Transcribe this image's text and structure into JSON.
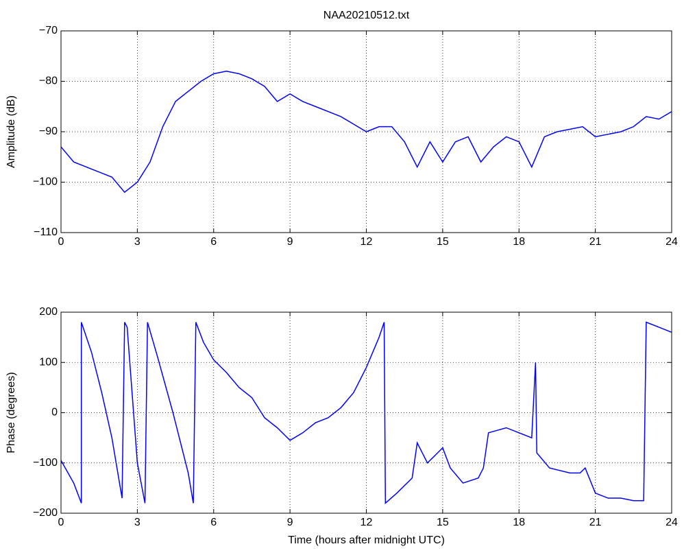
{
  "chart_data": [
    {
      "type": "line",
      "title": "NAA20210512.txt",
      "y_label": "Amplitude (dB)",
      "x": [
        0,
        0.5,
        1,
        1.5,
        2,
        2.5,
        3,
        3.5,
        4,
        4.5,
        5,
        5.5,
        6,
        6.5,
        7,
        7.5,
        8,
        8.5,
        9,
        9.5,
        10,
        10.5,
        11,
        11.5,
        12,
        12.5,
        13,
        13.5,
        14,
        14.5,
        15,
        15.5,
        16,
        16.5,
        17,
        17.5,
        18,
        18.5,
        19,
        19.5,
        20,
        20.5,
        21,
        21.5,
        22,
        22.5,
        23,
        23.5,
        24
      ],
      "series": [
        {
          "color": "#0000ff",
          "values": [
            -93,
            -96,
            -97,
            -98,
            -99,
            -102,
            -100,
            -96,
            -89,
            -84,
            -82,
            -80,
            -78.5,
            -78,
            -78.5,
            -79.5,
            -81,
            -84,
            -82.5,
            -84,
            -85,
            -86,
            -87,
            -88.5,
            -90,
            -89,
            -89,
            -92,
            -97,
            -92,
            -96,
            -92,
            -91,
            -96,
            -93,
            -91,
            -92,
            -97,
            -91,
            -90,
            -89.5,
            -89,
            -91,
            -90.5,
            -90,
            -89,
            -87,
            -87.5,
            -86
          ]
        }
      ],
      "xlim": [
        0,
        24
      ],
      "xticks": [
        0,
        3,
        6,
        9,
        12,
        15,
        18,
        21,
        24
      ],
      "ylim": [
        -110,
        -70
      ],
      "yticks": [
        {
          "value": -110,
          "label": "−110"
        },
        {
          "value": -100,
          "label": "−100"
        },
        {
          "value": -90,
          "label": "−90"
        },
        {
          "value": -80,
          "label": "−80"
        },
        {
          "value": -70,
          "label": "−70"
        }
      ],
      "grid": true
    },
    {
      "type": "line",
      "y_label": "Phase (degrees)",
      "x_label": "Time (hours after midnight UTC)",
      "x": [
        0,
        0.5,
        0.8,
        0.8,
        1.2,
        1.6,
        2.0,
        2.4,
        2.5,
        2.6,
        3.0,
        3.3,
        3.4,
        3.8,
        4.4,
        5.0,
        5.2,
        5.3,
        5.6,
        6.0,
        6.5,
        7.0,
        7.5,
        8.0,
        8.5,
        9.0,
        9.5,
        10.0,
        10.5,
        11.0,
        11.5,
        12.0,
        12.5,
        12.7,
        12.75,
        13.2,
        13.8,
        14.0,
        14.4,
        15.0,
        15.3,
        15.8,
        16.4,
        16.6,
        16.8,
        17.5,
        18.0,
        18.5,
        18.65,
        18.7,
        19.2,
        20.0,
        20.4,
        20.6,
        21.0,
        21.5,
        22.0,
        22.5,
        22.9,
        23.0,
        23.5,
        24.0
      ],
      "series": [
        {
          "color": "#0000ff",
          "values": [
            -95,
            -140,
            -180,
            180,
            120,
            40,
            -50,
            -170,
            180,
            170,
            -100,
            -180,
            180,
            110,
            0,
            -120,
            -180,
            180,
            140,
            105,
            80,
            50,
            30,
            -10,
            -30,
            -55,
            -40,
            -20,
            -10,
            10,
            40,
            90,
            150,
            180,
            -180,
            -160,
            -130,
            -60,
            -100,
            -70,
            -110,
            -140,
            -130,
            -110,
            -40,
            -30,
            -40,
            -50,
            100,
            -80,
            -110,
            -120,
            -120,
            -110,
            -160,
            -170,
            -170,
            -175,
            -175,
            180,
            170,
            160
          ]
        }
      ],
      "xlim": [
        0,
        24
      ],
      "xticks": [
        0,
        3,
        6,
        9,
        12,
        15,
        18,
        21,
        24
      ],
      "ylim": [
        -200,
        200
      ],
      "yticks": [
        {
          "value": -200,
          "label": "−200"
        },
        {
          "value": -100,
          "label": "−100"
        },
        0,
        100,
        200
      ],
      "grid": true
    }
  ]
}
